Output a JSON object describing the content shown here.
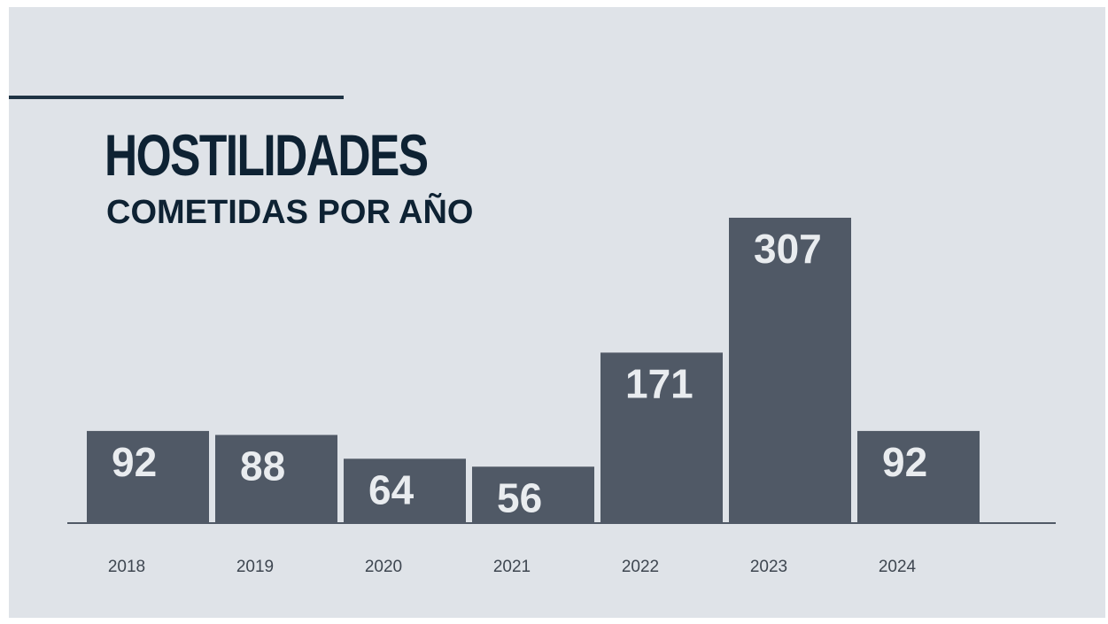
{
  "chart_data": {
    "type": "bar",
    "title": "HOSTILIDADES",
    "subtitle": "COMETIDAS POR AÑO",
    "categories": [
      "2018",
      "2019",
      "2020",
      "2021",
      "2022",
      "2023",
      "2024"
    ],
    "values": [
      92,
      88,
      64,
      56,
      171,
      307,
      92
    ],
    "data_labels": [
      "92",
      "88",
      "64",
      "56",
      "171",
      "307",
      "92"
    ],
    "xlabel": "",
    "ylabel": "",
    "ylim": [
      0,
      307
    ],
    "grid": false,
    "legend": "none",
    "colors": {
      "bar": "#505966",
      "bar_label": "#e9ecef",
      "title": "#0e2233",
      "background": "#dfe3e8"
    }
  }
}
